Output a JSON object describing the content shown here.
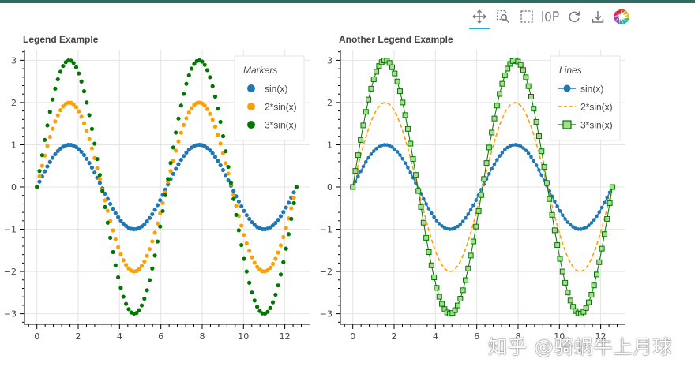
{
  "toolbar": {
    "tools": [
      "pan-icon",
      "box-zoom-icon",
      "box-select-icon",
      "wheel-zoom-icon",
      "reset-icon",
      "save-icon",
      "bokeh-logo"
    ],
    "active": "pan-icon"
  },
  "watermark": "知乎 @骑蜗牛上月球",
  "chart_data": [
    {
      "type": "scatter",
      "title": "Legend Example",
      "xlim": [
        -0.6,
        13.2
      ],
      "ylim": [
        -3.25,
        3.25
      ],
      "xticks": [
        0,
        2,
        4,
        6,
        8,
        10,
        12
      ],
      "yticks": [
        -3,
        -2,
        -1,
        0,
        1,
        2,
        3
      ],
      "x_start": 0,
      "x_stop": 12.566,
      "n_points": 100,
      "legend": {
        "title": "Markers",
        "placement": "top-right"
      },
      "series": [
        {
          "name": "sin(x)",
          "amplitude": 1,
          "glyph": "circle",
          "color": "#1f77b4"
        },
        {
          "name": "2*sin(x)",
          "amplitude": 2,
          "glyph": "circle",
          "color": "#ff9f00"
        },
        {
          "name": "3*sin(x)",
          "amplitude": 3,
          "glyph": "circle",
          "color": "#007700"
        }
      ]
    },
    {
      "type": "line",
      "title": "Another Legend Example",
      "xlim": [
        -0.6,
        13.2
      ],
      "ylim": [
        -3.25,
        3.25
      ],
      "xticks": [
        0,
        2,
        4,
        6,
        8,
        10,
        12
      ],
      "yticks": [
        -3,
        -2,
        -1,
        0,
        1,
        2,
        3
      ],
      "x_start": 0,
      "x_stop": 12.566,
      "n_points": 100,
      "legend": {
        "title": "Lines",
        "placement": "top-right"
      },
      "series": [
        {
          "name": "sin(x)",
          "amplitude": 1,
          "glyph": "circle+line",
          "color": "#1f77b4"
        },
        {
          "name": "2*sin(x)",
          "amplitude": 2,
          "glyph": "dashed-line",
          "color": "#ff9f00"
        },
        {
          "name": "3*sin(x)",
          "amplitude": 3,
          "glyph": "square+line",
          "color": "#007700",
          "fill": "#a6dd8e"
        }
      ]
    }
  ]
}
